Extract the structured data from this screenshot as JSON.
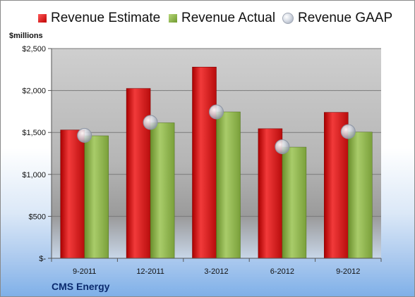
{
  "chart_data": {
    "type": "bar",
    "title": "",
    "ylabel": "$millions",
    "xlabel": "",
    "footer": "CMS Energy",
    "categories": [
      "9-2011",
      "12-2011",
      "3-2012",
      "6-2012",
      "9-2012"
    ],
    "series": [
      {
        "name": "Revenue Estimate",
        "kind": "bar",
        "color": "#d42020",
        "values": [
          1530,
          2025,
          2280,
          1545,
          1740
        ]
      },
      {
        "name": "Revenue Actual",
        "kind": "bar",
        "color": "#8db04a",
        "values": [
          1460,
          1615,
          1745,
          1325,
          1505
        ]
      },
      {
        "name": "Revenue GAAP",
        "kind": "marker",
        "color": "#c9ced8",
        "values": [
          1465,
          1620,
          1745,
          1330,
          1510
        ]
      }
    ],
    "ylim": [
      0,
      2500
    ],
    "yticks": [
      0,
      500,
      1000,
      1500,
      2000,
      2500
    ],
    "ytick_labels": [
      "$-",
      "$500",
      "$1,000",
      "$1,500",
      "$2,000",
      "$2,500"
    ],
    "grid": true,
    "legend_position": "top"
  }
}
